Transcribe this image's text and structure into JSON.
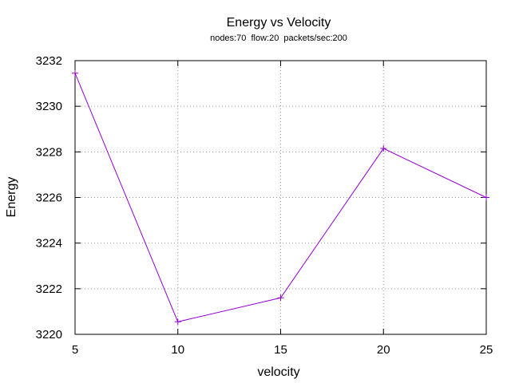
{
  "chart_data": {
    "type": "line",
    "title": "Energy vs Velocity",
    "subtitle": "nodes:70  flow:20  packets/sec:200",
    "xlabel": "velocity",
    "ylabel": "Energy",
    "xlim": [
      5,
      25
    ],
    "ylim": [
      3220,
      3232
    ],
    "xticks": [
      5,
      10,
      15,
      20,
      25
    ],
    "yticks": [
      3220,
      3222,
      3224,
      3226,
      3228,
      3230,
      3232
    ],
    "grid": true,
    "series": [
      {
        "color": "#9400d3",
        "marker": "plus",
        "x": [
          5,
          10,
          15,
          20,
          25
        ],
        "y": [
          3231.45,
          3220.55,
          3221.6,
          3228.15,
          3226.0
        ]
      }
    ]
  }
}
